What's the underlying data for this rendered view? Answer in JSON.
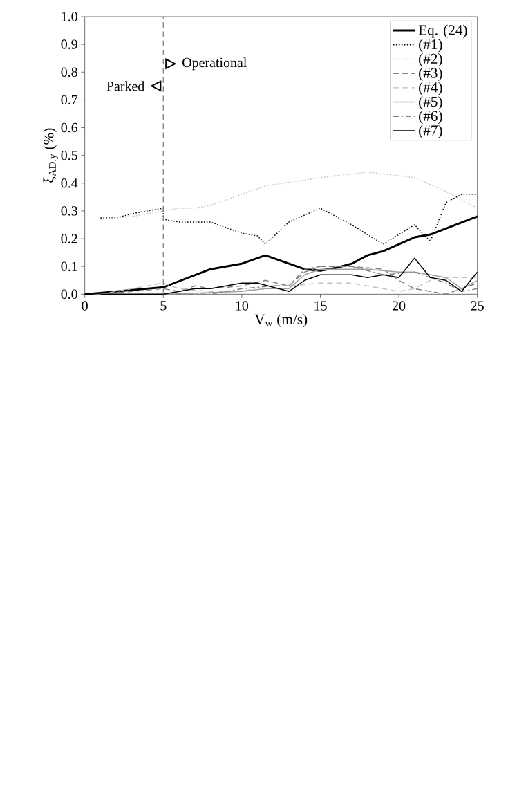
{
  "chart_data": {
    "type": "line",
    "xlabel": "V$_{w}$ (m/s)",
    "ylabel": "ξ$_{AD,y}$ (%)",
    "xlim": [
      0,
      25
    ],
    "xticks": [
      0,
      5,
      10,
      15,
      20,
      25
    ],
    "ylim": [
      0,
      1.0
    ],
    "yticks": [
      {
        "value": 0,
        "label": "0.0"
      },
      {
        "value": 0.1,
        "label": "0.1"
      },
      {
        "value": 0.2,
        "label": "0.2"
      },
      {
        "value": 0.3,
        "label": "0.3"
      },
      {
        "value": 0.4,
        "label": "0.4"
      },
      {
        "value": 0.5,
        "label": "0.5"
      },
      {
        "value": 0.6,
        "label": "0.6"
      },
      {
        "value": 0.7,
        "label": "0.7"
      },
      {
        "value": 0.8,
        "label": "0.8"
      },
      {
        "value": 0.9,
        "label": "0.9"
      },
      {
        "value": 1.0,
        "label": "1.0"
      }
    ],
    "grid": false,
    "legend": "top right",
    "marker": "none",
    "ref_lines": [
      {
        "axis": "x",
        "value": 5,
        "color": "#808080",
        "line_style": "dashed"
      }
    ],
    "annotations": [
      {
        "text": "Operational",
        "x": 5,
        "y": 0.83
      },
      {
        "text": "Parked",
        "x": 5,
        "y": 0.75
      }
    ],
    "series": [
      {
        "name": "Eq. (24)",
        "color": "#000000",
        "line_style": "solid",
        "x": [
          0,
          5,
          8,
          10,
          11.5,
          13,
          14,
          15,
          16,
          17,
          18,
          19,
          20,
          21,
          22,
          25
        ],
        "values": [
          0,
          0.025,
          0.09,
          0.11,
          0.14,
          0.11,
          0.09,
          0.085,
          0.095,
          0.11,
          0.14,
          0.155,
          0.18,
          0.205,
          0.215,
          0.28
        ]
      },
      {
        "name": "(#1)",
        "color": "#000000",
        "line_style": "dotted",
        "x": [
          1,
          2,
          3,
          5,
          5,
          6,
          8,
          10,
          11,
          11.5,
          13,
          15,
          17,
          19,
          21,
          22,
          23,
          24,
          25
        ],
        "values": [
          0.275,
          0.275,
          0.29,
          0.31,
          0.27,
          0.26,
          0.26,
          0.22,
          0.21,
          0.18,
          0.26,
          0.31,
          0.25,
          0.18,
          0.25,
          0.19,
          0.33,
          0.36,
          0.36
        ]
      },
      {
        "name": "(#2)",
        "color": "#c0c0c0",
        "line_style": "dotted",
        "x": [
          1,
          3,
          5,
          6,
          7,
          8,
          10,
          11.5,
          15,
          18,
          21,
          23,
          25
        ],
        "values": [
          0.27,
          0.28,
          0.3,
          0.31,
          0.31,
          0.32,
          0.36,
          0.39,
          0.42,
          0.44,
          0.42,
          0.37,
          0.31
        ]
      },
      {
        "name": "(#3)",
        "color": "#808080",
        "line_style": "dashed",
        "x": [
          1,
          3,
          5,
          6,
          7,
          8,
          10,
          11.5,
          13,
          14,
          15,
          17,
          19,
          20,
          21,
          22,
          23,
          25
        ],
        "values": [
          0,
          0.01,
          0.02,
          0.01,
          0.03,
          0.02,
          0.03,
          0.05,
          0.03,
          0.08,
          0.1,
          0.1,
          0.09,
          0.05,
          0.02,
          0.01,
          0,
          0.04
        ]
      },
      {
        "name": "(#4)",
        "color": "#c0c0c0",
        "line_style": "dashed",
        "x": [
          1,
          3,
          5,
          6,
          8,
          10,
          11.5,
          13,
          15,
          17,
          19,
          20,
          21,
          22,
          23,
          25
        ],
        "values": [
          0,
          0.02,
          0.04,
          0.02,
          0.01,
          0.01,
          0.03,
          0.03,
          0.04,
          0.04,
          0.02,
          0.01,
          0.02,
          0.05,
          0.06,
          0.06
        ]
      },
      {
        "name": "(#5)",
        "color": "#a0a0a0",
        "line_style": "solid",
        "x": [
          5,
          10,
          11.5,
          13,
          14,
          15,
          17,
          18,
          20,
          21,
          23,
          24,
          25
        ],
        "values": [
          0,
          0.01,
          0.02,
          0.02,
          0.07,
          0.09,
          0.09,
          0.09,
          0.08,
          0.08,
          0.06,
          0.02,
          0.05
        ]
      },
      {
        "name": "(#6)",
        "color": "#808080",
        "line_style": "dashdot",
        "x": [
          5,
          8,
          10,
          12,
          13,
          14,
          15,
          17,
          19,
          21,
          23,
          24,
          25
        ],
        "values": [
          0,
          0,
          0.02,
          0.03,
          0.03,
          0.09,
          0.1,
          0.1,
          0.07,
          0.08,
          0.04,
          0.01,
          0.02
        ]
      },
      {
        "name": "(#7)",
        "color": "#000000",
        "line_style": "solid",
        "x": [
          1,
          5,
          7,
          8,
          10,
          11,
          13,
          14,
          15,
          17,
          18,
          19,
          20,
          21,
          22,
          23,
          24,
          25
        ],
        "values": [
          0,
          0,
          0.02,
          0.02,
          0.04,
          0.04,
          0.01,
          0.05,
          0.07,
          0.07,
          0.06,
          0.07,
          0.06,
          0.13,
          0.06,
          0.05,
          0.01,
          0.08
        ]
      }
    ]
  }
}
